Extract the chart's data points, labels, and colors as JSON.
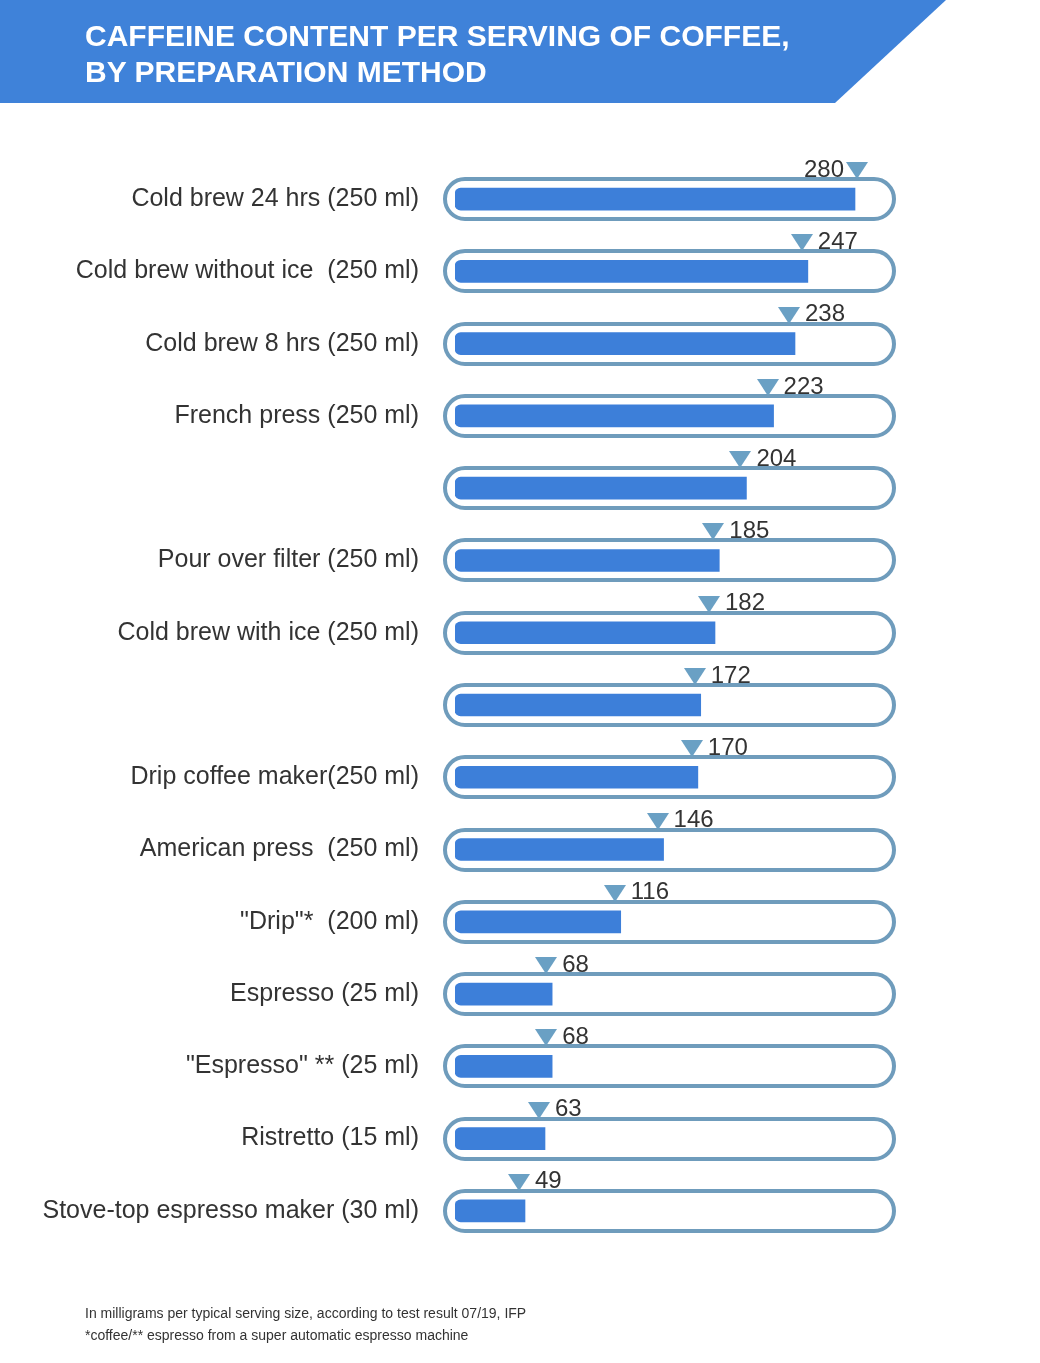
{
  "chart_data": {
    "type": "bar",
    "orientation": "horizontal",
    "title": "CAFFEINE CONTENT PER SERVING OF COFFEE, BY PREPARATION METHOD",
    "categories": [
      "Cold brew 24 hrs (250 ml)",
      "Cold brew without ice  (250 ml)",
      "Cold brew 8 hrs (250 ml)",
      "French press (250 ml)",
      null,
      "Pour over filter (250 ml)",
      "Cold brew with ice (250 ml)",
      null,
      "Drip coffee maker(250 ml)",
      "American press  (250 ml)",
      "\"Drip\"*  (200 ml)",
      "Espresso (25 ml)",
      "\"Espresso\" ** (25 ml)",
      "Ristretto (15 ml)",
      "Stove-top espresso maker (30 ml)"
    ],
    "values": [
      280,
      247,
      238,
      223,
      204,
      185,
      182,
      172,
      170,
      146,
      116,
      68,
      68,
      63,
      49
    ],
    "color": "#3d7fd9",
    "data_labels": true,
    "legend": false,
    "grid": false,
    "annotations": [
      "In milligrams per typical serving size, according to test result 07/19, IFP",
      "*coffee/** espresso from a super automatic espresso machine"
    ]
  }
}
